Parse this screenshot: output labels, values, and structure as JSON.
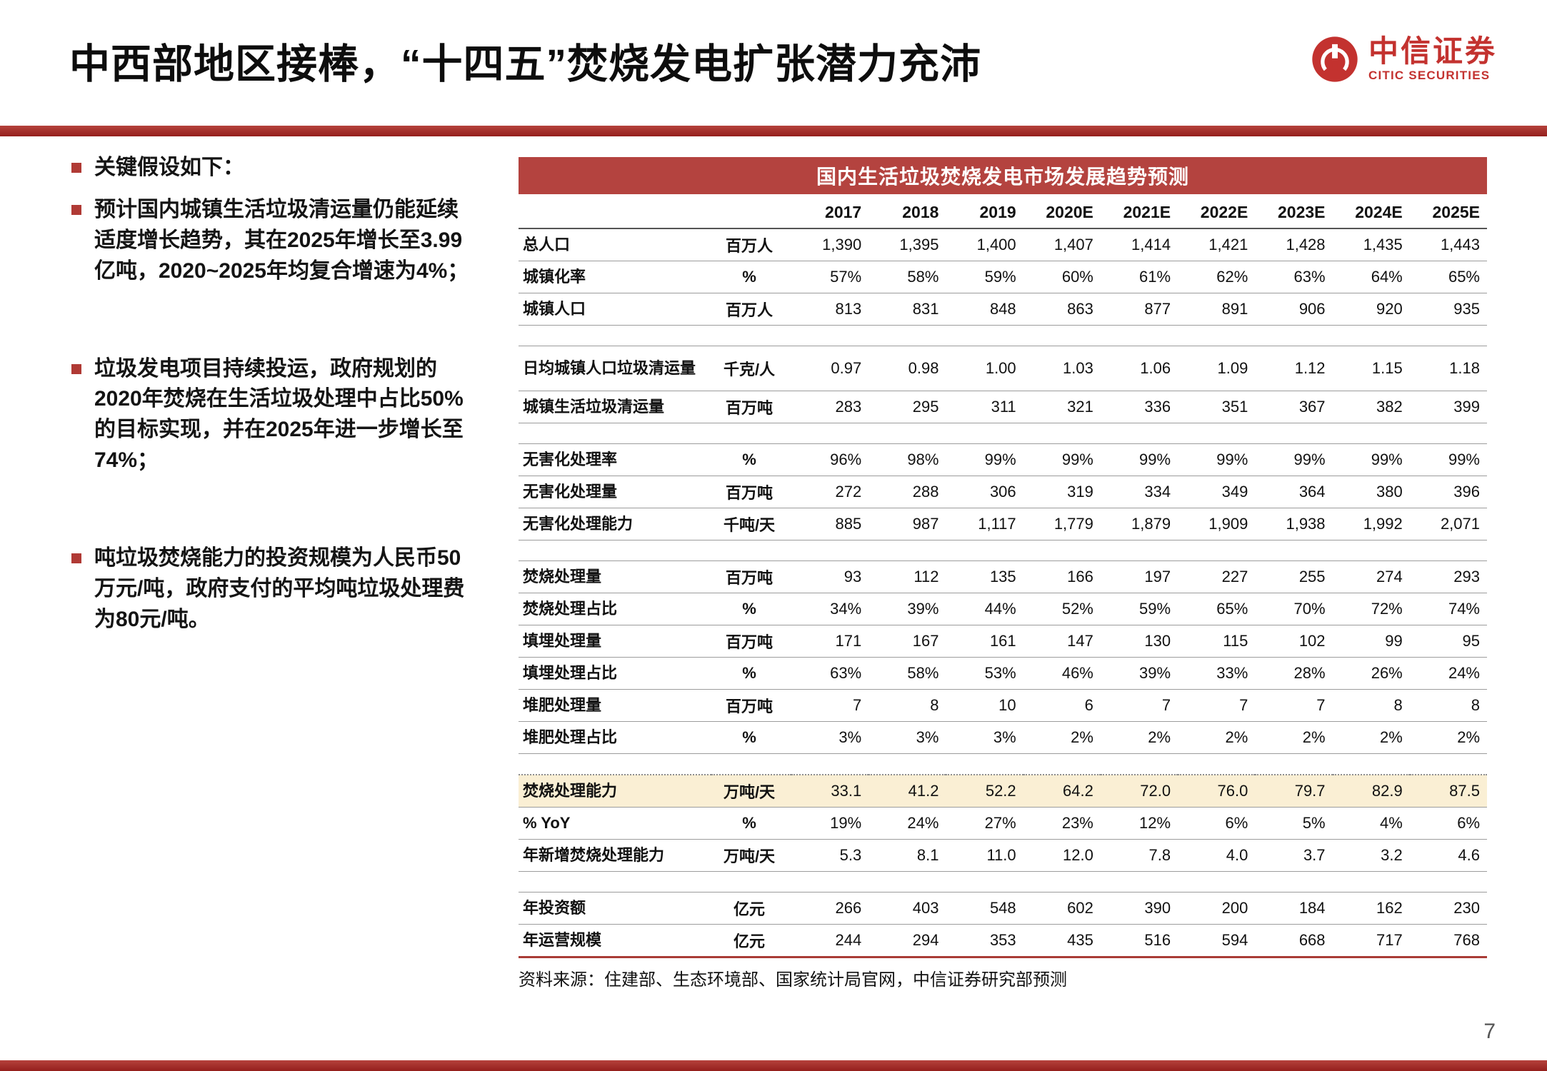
{
  "page": {
    "title": "中西部地区接棒，“十四五”焚烧发电扩张潜力充沛",
    "page_number": "7",
    "accent_color": "#b4433f",
    "bar_color": "#941f1c",
    "highlight_color": "#faefd4"
  },
  "logo": {
    "name_cn": "中信证券",
    "name_en": "CITIC SECURITIES"
  },
  "bullets": {
    "heading": "关键假设如下：",
    "items": [
      "预计国内城镇生活垃圾清运量仍能延续适度增长趋势，其在2025年增长至3.99亿吨，2020~2025年均复合增速为4%；",
      "垃圾发电项目持续投运，政府规划的2020年焚烧在生活垃圾处理中占比50%的目标实现，并在2025年进一步增长至74%；",
      "吨垃圾焚烧能力的投资规模为人民币50万元/吨，政府支付的平均吨垃圾处理费为80元/吨。"
    ]
  },
  "table": {
    "title": "国内生活垃圾焚烧发电市场发展趋势预测",
    "years": [
      "2017",
      "2018",
      "2019",
      "2020E",
      "2021E",
      "2022E",
      "2023E",
      "2024E",
      "2025E"
    ],
    "sections": [
      {
        "rows": [
          {
            "label": "总人口",
            "unit": "百万人",
            "values": [
              "1,390",
              "1,395",
              "1,400",
              "1,407",
              "1,414",
              "1,421",
              "1,428",
              "1,435",
              "1,443"
            ]
          },
          {
            "label": "城镇化率",
            "unit": "%",
            "values": [
              "57%",
              "58%",
              "59%",
              "60%",
              "61%",
              "62%",
              "63%",
              "64%",
              "65%"
            ]
          },
          {
            "label": "城镇人口",
            "unit": "百万人",
            "values": [
              "813",
              "831",
              "848",
              "863",
              "877",
              "891",
              "906",
              "920",
              "935"
            ]
          }
        ]
      },
      {
        "rows": [
          {
            "label": "日均城镇人口垃圾清运量",
            "unit": "千克/人",
            "tall": true,
            "values": [
              "0.97",
              "0.98",
              "1.00",
              "1.03",
              "1.06",
              "1.09",
              "1.12",
              "1.15",
              "1.18"
            ]
          },
          {
            "label": "城镇生活垃圾清运量",
            "unit": "百万吨",
            "values": [
              "283",
              "295",
              "311",
              "321",
              "336",
              "351",
              "367",
              "382",
              "399"
            ]
          }
        ]
      },
      {
        "rows": [
          {
            "label": "无害化处理率",
            "unit": "%",
            "values": [
              "96%",
              "98%",
              "99%",
              "99%",
              "99%",
              "99%",
              "99%",
              "99%",
              "99%"
            ]
          },
          {
            "label": "无害化处理量",
            "unit": "百万吨",
            "values": [
              "272",
              "288",
              "306",
              "319",
              "334",
              "349",
              "364",
              "380",
              "396"
            ]
          },
          {
            "label": "无害化处理能力",
            "unit": "千吨/天",
            "values": [
              "885",
              "987",
              "1,117",
              "1,779",
              "1,879",
              "1,909",
              "1,938",
              "1,992",
              "2,071"
            ]
          }
        ]
      },
      {
        "rows": [
          {
            "label": "焚烧处理量",
            "unit": "百万吨",
            "values": [
              "93",
              "112",
              "135",
              "166",
              "197",
              "227",
              "255",
              "274",
              "293"
            ]
          },
          {
            "label": "焚烧处理占比",
            "unit": "%",
            "values": [
              "34%",
              "39%",
              "44%",
              "52%",
              "59%",
              "65%",
              "70%",
              "72%",
              "74%"
            ]
          },
          {
            "label": "填埋处理量",
            "unit": "百万吨",
            "values": [
              "171",
              "167",
              "161",
              "147",
              "130",
              "115",
              "102",
              "99",
              "95"
            ]
          },
          {
            "label": "填埋处理占比",
            "unit": "%",
            "values": [
              "63%",
              "58%",
              "53%",
              "46%",
              "39%",
              "33%",
              "28%",
              "26%",
              "24%"
            ]
          },
          {
            "label": "堆肥处理量",
            "unit": "百万吨",
            "values": [
              "7",
              "8",
              "10",
              "6",
              "7",
              "7",
              "7",
              "8",
              "8"
            ]
          },
          {
            "label": "堆肥处理占比",
            "unit": "%",
            "values": [
              "3%",
              "3%",
              "3%",
              "2%",
              "2%",
              "2%",
              "2%",
              "2%",
              "2%"
            ]
          }
        ]
      },
      {
        "dotted": true,
        "rows": [
          {
            "label": "焚烧处理能力",
            "unit": "万吨/天",
            "highlight": true,
            "values": [
              "33.1",
              "41.2",
              "52.2",
              "64.2",
              "72.0",
              "76.0",
              "79.7",
              "82.9",
              "87.5"
            ]
          },
          {
            "label": "% YoY",
            "unit": "%",
            "values": [
              "19%",
              "24%",
              "27%",
              "23%",
              "12%",
              "6%",
              "5%",
              "4%",
              "6%"
            ]
          },
          {
            "label": "年新增焚烧处理能力",
            "unit": "万吨/天",
            "values": [
              "5.3",
              "8.1",
              "11.0",
              "12.0",
              "7.8",
              "4.0",
              "3.7",
              "3.2",
              "4.6"
            ]
          }
        ]
      },
      {
        "rows": [
          {
            "label": "年投资额",
            "unit": "亿元",
            "values": [
              "266",
              "403",
              "548",
              "602",
              "390",
              "200",
              "184",
              "162",
              "230"
            ]
          },
          {
            "label": "年运营规模",
            "unit": "亿元",
            "values": [
              "244",
              "294",
              "353",
              "435",
              "516",
              "594",
              "668",
              "717",
              "768"
            ]
          }
        ]
      }
    ]
  },
  "source": "资料来源：住建部、生态环境部、国家统计局官网，中信证券研究部预测"
}
